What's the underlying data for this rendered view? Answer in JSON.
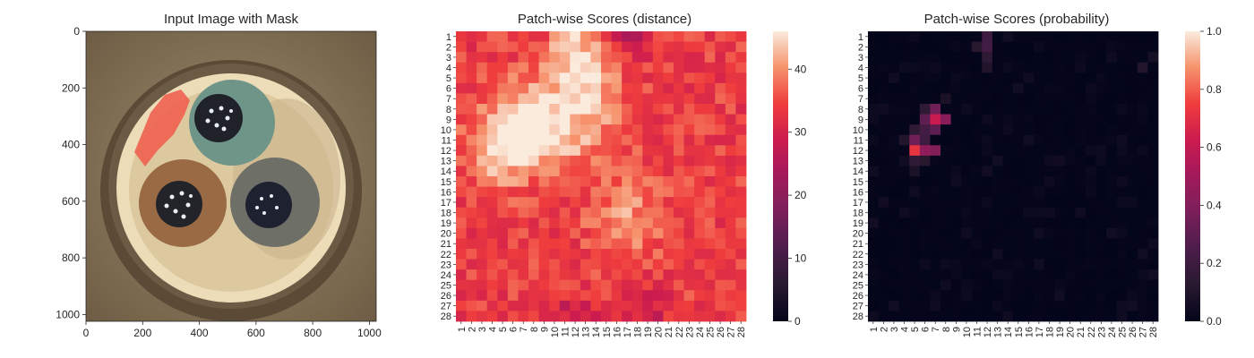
{
  "chart_data": [
    {
      "type": "image",
      "title": "Input Image with Mask",
      "xticks": [
        0,
        200,
        400,
        600,
        800,
        1000
      ],
      "yticks": [
        0,
        200,
        400,
        600,
        800,
        1000
      ],
      "xlim": [
        0,
        1024
      ],
      "ylim": [
        1024,
        0
      ],
      "content": "cable cross-section with three insulated conductors (green, brown, grey); red anomaly mask near upper-left of green conductor"
    },
    {
      "type": "heatmap",
      "title": "Patch-wise Scores (distance)",
      "rows": 28,
      "cols": 28,
      "row_labels": [
        "1",
        "2",
        "3",
        "4",
        "5",
        "6",
        "7",
        "8",
        "9",
        "10",
        "11",
        "12",
        "13",
        "14",
        "15",
        "16",
        "17",
        "18",
        "19",
        "20",
        "21",
        "22",
        "23",
        "24",
        "25",
        "26",
        "27",
        "28"
      ],
      "col_labels": [
        "1",
        "2",
        "3",
        "4",
        "5",
        "6",
        "7",
        "8",
        "9",
        "10",
        "11",
        "12",
        "13",
        "14",
        "15",
        "16",
        "17",
        "18",
        "19",
        "20",
        "21",
        "22",
        "23",
        "24",
        "25",
        "26",
        "27",
        "28"
      ],
      "colorbar": {
        "min": 0,
        "max": 46,
        "ticks": [
          0,
          10,
          20,
          30,
          40
        ]
      },
      "colormap": "rocket",
      "base_value": 34,
      "hotspots": [
        {
          "row": 11.5,
          "col": 5.5,
          "value": 46,
          "radius": 2.5
        },
        {
          "row": 9,
          "col": 7.5,
          "value": 44,
          "radius": 2.5
        },
        {
          "row": 9,
          "col": 12.5,
          "value": 42,
          "radius": 3
        },
        {
          "row": 2.5,
          "col": 12,
          "value": 43,
          "radius": 1.8
        },
        {
          "row": 18.5,
          "col": 17,
          "value": 41,
          "radius": 2.5
        },
        {
          "row": 5,
          "col": 13,
          "value": 39,
          "radius": 2.2
        }
      ],
      "lowspots": [
        {
          "row": 1,
          "col": 17.5,
          "value": 22,
          "radius": 1.2
        },
        {
          "row": 28,
          "col": 12,
          "value": 28,
          "radius": 1.5
        },
        {
          "row": 28,
          "col": 19,
          "value": 28,
          "radius": 1.5
        }
      ]
    },
    {
      "type": "heatmap",
      "title": "Patch-wise Scores (probability)",
      "rows": 28,
      "cols": 28,
      "row_labels": [
        "1",
        "2",
        "3",
        "4",
        "5",
        "6",
        "7",
        "8",
        "9",
        "10",
        "11",
        "12",
        "13",
        "14",
        "15",
        "16",
        "17",
        "18",
        "19",
        "20",
        "21",
        "22",
        "23",
        "24",
        "25",
        "26",
        "27",
        "28"
      ],
      "col_labels": [
        "1",
        "2",
        "3",
        "4",
        "5",
        "6",
        "7",
        "8",
        "9",
        "10",
        "11",
        "12",
        "13",
        "14",
        "15",
        "16",
        "17",
        "18",
        "19",
        "20",
        "21",
        "22",
        "23",
        "24",
        "25",
        "26",
        "27",
        "28"
      ],
      "colorbar": {
        "min": 0.0,
        "max": 1.0,
        "ticks": [
          "0.0",
          "0.2",
          "0.4",
          "0.6",
          "0.8",
          "1.0"
        ]
      },
      "colormap": "rocket",
      "base_value": 0.0,
      "cells": [
        {
          "row": 12,
          "col": 5,
          "value": 0.72
        },
        {
          "row": 12,
          "col": 6,
          "value": 0.45
        },
        {
          "row": 12,
          "col": 7,
          "value": 0.4
        },
        {
          "row": 11,
          "col": 5,
          "value": 0.35
        },
        {
          "row": 11,
          "col": 6,
          "value": 0.2
        },
        {
          "row": 13,
          "col": 5,
          "value": 0.15
        },
        {
          "row": 13,
          "col": 6,
          "value": 0.12
        },
        {
          "row": 9,
          "col": 7,
          "value": 0.62
        },
        {
          "row": 9,
          "col": 8,
          "value": 0.42
        },
        {
          "row": 8,
          "col": 7,
          "value": 0.35
        },
        {
          "row": 10,
          "col": 7,
          "value": 0.3
        },
        {
          "row": 9,
          "col": 6,
          "value": 0.3
        },
        {
          "row": 10,
          "col": 6,
          "value": 0.22
        },
        {
          "row": 8,
          "col": 6,
          "value": 0.15
        },
        {
          "row": 10,
          "col": 5,
          "value": 0.15
        },
        {
          "row": 1,
          "col": 12,
          "value": 0.2
        },
        {
          "row": 2,
          "col": 12,
          "value": 0.22
        },
        {
          "row": 3,
          "col": 12,
          "value": 0.15
        },
        {
          "row": 2,
          "col": 11,
          "value": 0.12
        },
        {
          "row": 4,
          "col": 12,
          "value": 0.1
        },
        {
          "row": 11,
          "col": 4,
          "value": 0.1
        },
        {
          "row": 14,
          "col": 5,
          "value": 0.08
        },
        {
          "row": 7,
          "col": 8,
          "value": 0.08
        },
        {
          "row": 4,
          "col": 27,
          "value": 0.1
        },
        {
          "row": 3,
          "col": 28,
          "value": 0.06
        }
      ],
      "noise_level": 0.05
    }
  ]
}
